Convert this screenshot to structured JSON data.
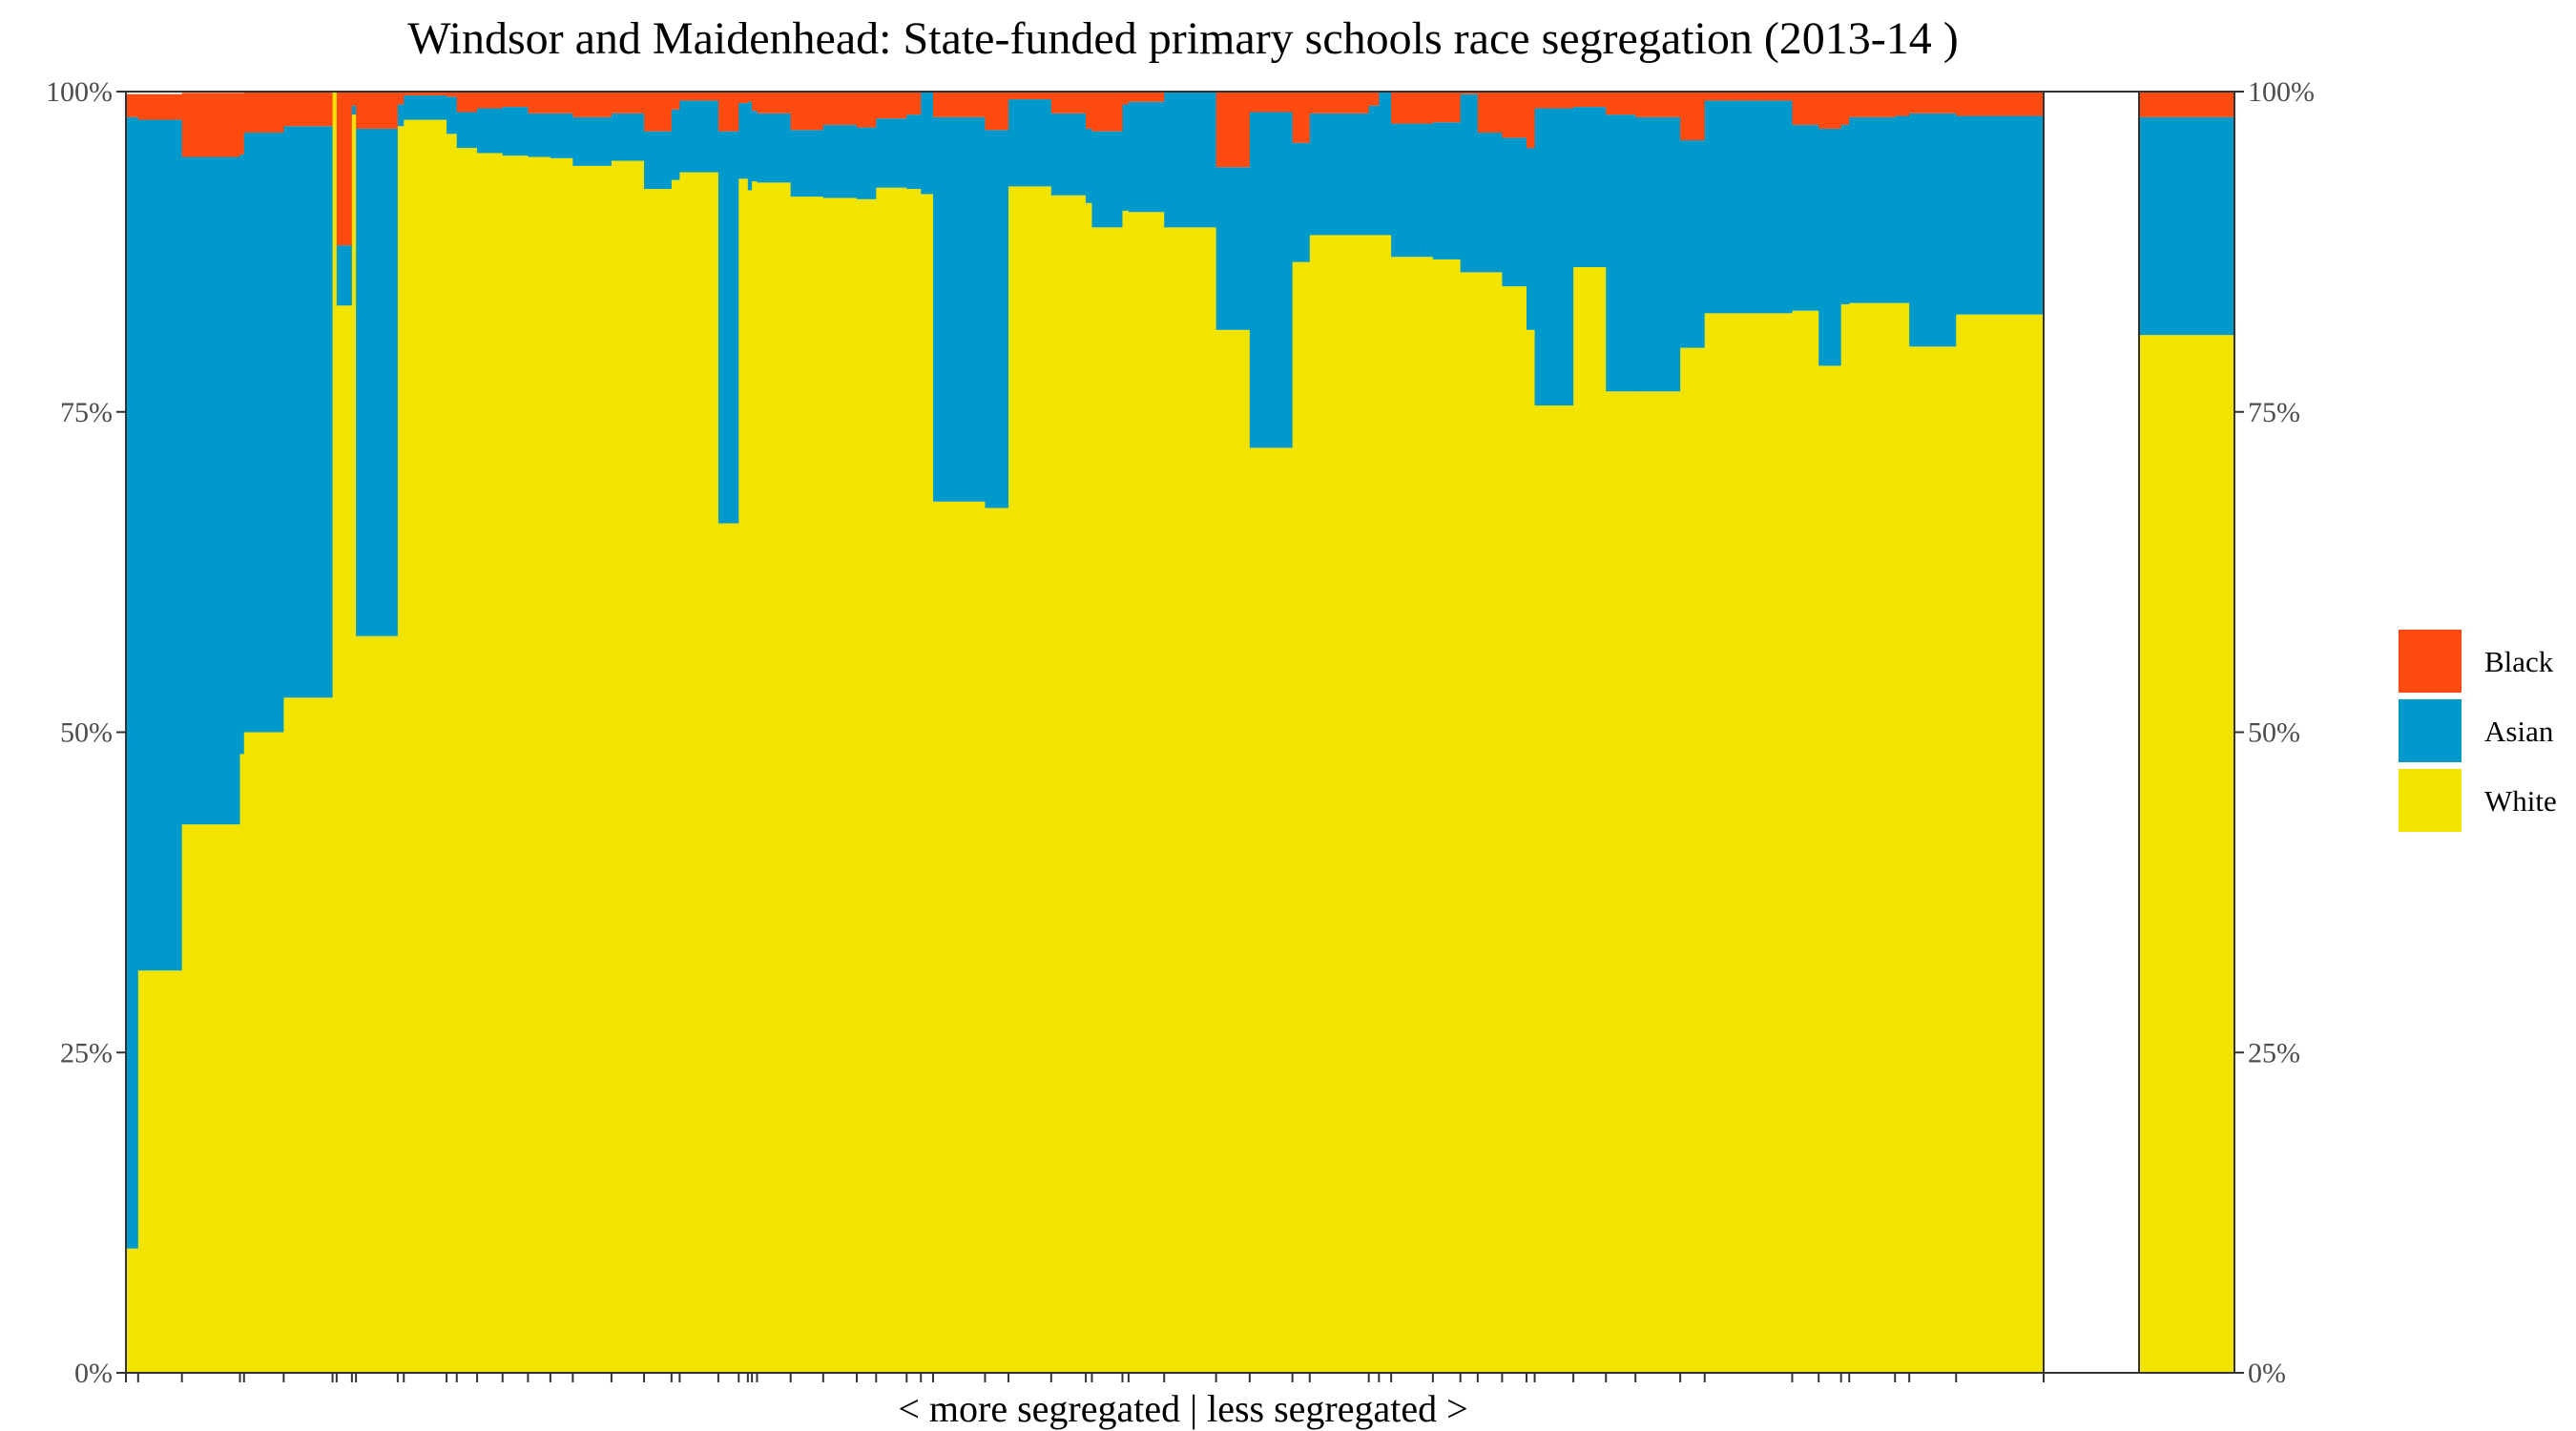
{
  "chart_data": {
    "type": "bar",
    "subtype": "stacked-100-percent-variable-width",
    "title": "Windsor and Maidenhead: State-funded primary schools race segregation (2013-14 )",
    "xlabel": "< more segregated | less segregated >",
    "ylabel": "",
    "ylim": [
      0,
      100
    ],
    "y_ticks": [
      "0%",
      "25%",
      "50%",
      "75%",
      "100%"
    ],
    "grid": false,
    "legend_position": "right",
    "series_order": [
      "White",
      "Asian",
      "Black"
    ],
    "legend": [
      {
        "name": "Black",
        "color": "#FF4B0F"
      },
      {
        "name": "Asian",
        "color": "#0099CC"
      },
      {
        "name": "White",
        "color": "#F2E300"
      }
    ],
    "note": "Each column is one school; column width proportional to pupil count (relative units). Values are percent of pupils, read from the chart.",
    "schools": [
      {
        "w": 12,
        "white": 9.7,
        "asian": 88.3,
        "black": 1.8
      },
      {
        "w": 43,
        "white": 31.4,
        "asian": 66.4,
        "black": 2.0
      },
      {
        "w": 57,
        "white": 42.8,
        "asian": 52.1,
        "black": 5.0
      },
      {
        "w": 4,
        "white": 48.3,
        "asian": 46.8,
        "black": 4.8
      },
      {
        "w": 39,
        "white": 50.0,
        "asian": 46.8,
        "black": 3.2
      },
      {
        "w": 48,
        "white": 52.7,
        "asian": 44.6,
        "black": 2.7
      },
      {
        "w": 4,
        "white": 100.0,
        "asian": 0.0,
        "black": 0.0
      },
      {
        "w": 15,
        "white": 83.3,
        "asian": 4.7,
        "black": 12.0
      },
      {
        "w": 4,
        "white": 98.2,
        "asian": 0.7,
        "black": 1.1
      },
      {
        "w": 41,
        "white": 57.5,
        "asian": 39.6,
        "black": 2.9
      },
      {
        "w": 6,
        "white": 97.3,
        "asian": 1.7,
        "black": 1.0
      },
      {
        "w": 42,
        "white": 97.8,
        "asian": 1.9,
        "black": 0.3
      },
      {
        "w": 10,
        "white": 96.7,
        "asian": 2.9,
        "black": 0.4
      },
      {
        "w": 20,
        "white": 95.6,
        "asian": 2.8,
        "black": 1.6
      },
      {
        "w": 25,
        "white": 95.2,
        "asian": 3.5,
        "black": 1.3
      },
      {
        "w": 25,
        "white": 95.0,
        "asian": 3.8,
        "black": 1.2
      },
      {
        "w": 22,
        "white": 94.9,
        "asian": 3.4,
        "black": 1.7
      },
      {
        "w": 22,
        "white": 94.8,
        "asian": 3.5,
        "black": 1.7
      },
      {
        "w": 38,
        "white": 94.2,
        "asian": 3.8,
        "black": 2.0
      },
      {
        "w": 32,
        "white": 94.6,
        "asian": 3.7,
        "black": 1.7
      },
      {
        "w": 27,
        "white": 92.4,
        "asian": 4.5,
        "black": 3.1
      },
      {
        "w": 8,
        "white": 93.1,
        "asian": 5.5,
        "black": 1.4
      },
      {
        "w": 38,
        "white": 93.7,
        "asian": 5.6,
        "black": 0.7
      },
      {
        "w": 20,
        "white": 66.3,
        "asian": 30.6,
        "black": 3.1
      },
      {
        "w": 9,
        "white": 93.2,
        "asian": 5.9,
        "black": 0.9
      },
      {
        "w": 4,
        "white": 92.3,
        "asian": 6.9,
        "black": 0.8
      },
      {
        "w": 5,
        "white": 93.0,
        "asian": 5.5,
        "black": 1.5
      },
      {
        "w": 33,
        "white": 92.9,
        "asian": 5.4,
        "black": 1.7
      },
      {
        "w": 32,
        "white": 91.8,
        "asian": 5.2,
        "black": 3.0
      },
      {
        "w": 33,
        "white": 91.7,
        "asian": 5.7,
        "black": 2.6
      },
      {
        "w": 19,
        "white": 91.6,
        "asian": 5.6,
        "black": 2.8
      },
      {
        "w": 30,
        "white": 92.5,
        "asian": 5.4,
        "black": 2.1
      },
      {
        "w": 14,
        "white": 92.4,
        "asian": 5.8,
        "black": 1.8
      },
      {
        "w": 12,
        "white": 92.0,
        "asian": 8.0,
        "black": 0.0
      },
      {
        "w": 51,
        "white": 68.0,
        "asian": 30.0,
        "black": 2.0
      },
      {
        "w": 23,
        "white": 67.5,
        "asian": 29.5,
        "black": 3.0
      },
      {
        "w": 42,
        "white": 92.6,
        "asian": 6.8,
        "black": 0.6
      },
      {
        "w": 34,
        "white": 91.9,
        "asian": 6.4,
        "black": 1.7
      },
      {
        "w": 6,
        "white": 91.3,
        "asian": 5.8,
        "black": 2.9
      },
      {
        "w": 30,
        "white": 89.4,
        "asian": 7.5,
        "black": 3.1
      },
      {
        "w": 6,
        "white": 90.7,
        "asian": 8.3,
        "black": 1.0
      },
      {
        "w": 35,
        "white": 90.6,
        "asian": 8.6,
        "black": 0.8
      },
      {
        "w": 51,
        "white": 89.4,
        "asian": 10.6,
        "black": 0.0
      },
      {
        "w": 33,
        "white": 81.4,
        "asian": 12.7,
        "black": 5.9
      },
      {
        "w": 42,
        "white": 72.2,
        "asian": 26.2,
        "black": 1.6
      },
      {
        "w": 17,
        "white": 86.7,
        "asian": 9.3,
        "black": 4.0
      },
      {
        "w": 58,
        "white": 88.8,
        "asian": 9.5,
        "black": 1.7
      },
      {
        "w": 10,
        "white": 88.8,
        "asian": 10.1,
        "black": 1.1
      },
      {
        "w": 12,
        "white": 88.8,
        "asian": 11.2,
        "black": 0.0
      },
      {
        "w": 41,
        "white": 87.1,
        "asian": 10.4,
        "black": 2.5
      },
      {
        "w": 27,
        "white": 86.9,
        "asian": 10.7,
        "black": 2.4
      },
      {
        "w": 17,
        "white": 85.9,
        "asian": 13.9,
        "black": 0.2
      },
      {
        "w": 24,
        "white": 85.9,
        "asian": 10.9,
        "black": 3.2
      },
      {
        "w": 24,
        "white": 84.8,
        "asian": 11.6,
        "black": 3.6
      },
      {
        "w": 8,
        "white": 81.4,
        "asian": 14.2,
        "black": 4.4
      },
      {
        "w": 38,
        "white": 75.5,
        "asian": 23.2,
        "black": 1.3
      },
      {
        "w": 32,
        "white": 86.3,
        "asian": 12.5,
        "black": 1.2
      },
      {
        "w": 29,
        "white": 76.6,
        "asian": 21.6,
        "black": 1.8
      },
      {
        "w": 44,
        "white": 76.6,
        "asian": 21.4,
        "black": 2.0
      },
      {
        "w": 24,
        "white": 80.0,
        "asian": 16.2,
        "black": 3.8
      },
      {
        "w": 86,
        "white": 82.7,
        "asian": 16.6,
        "black": 0.7
      },
      {
        "w": 26,
        "white": 82.9,
        "asian": 14.5,
        "black": 2.6
      },
      {
        "w": 22,
        "white": 78.6,
        "asian": 18.5,
        "black": 2.9
      },
      {
        "w": 8,
        "white": 83.4,
        "asian": 14.0,
        "black": 2.6
      },
      {
        "w": 45,
        "white": 83.5,
        "asian": 14.5,
        "black": 2.0
      },
      {
        "w": 14,
        "white": 83.5,
        "asian": 14.6,
        "black": 1.9
      },
      {
        "w": 46,
        "white": 80.1,
        "asian": 18.2,
        "black": 1.7
      },
      {
        "w": 86,
        "white": 82.6,
        "asian": 15.5,
        "black": 1.9
      }
    ],
    "overall": {
      "white": 81.0,
      "asian": 17.0,
      "black": 2.0
    }
  }
}
